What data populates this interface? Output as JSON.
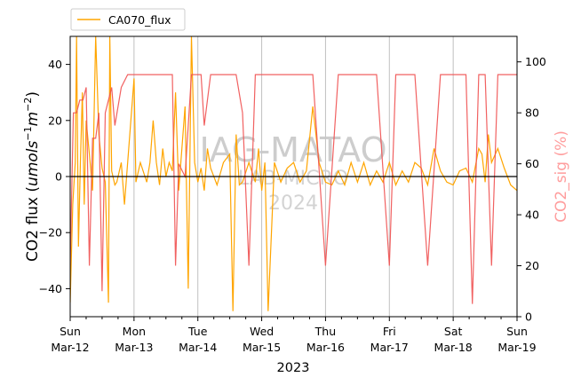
{
  "chart_data": {
    "type": "line",
    "legend": {
      "label": "CA070_flux",
      "placement": "top-left (above plot)"
    },
    "xlabel": "2023",
    "ylabel_left": "CO2 flux (umols^-1 m^-2)",
    "ylabel_right": "CO2_sig (%)",
    "ylim_left": [
      -50,
      50
    ],
    "ylim_right": [
      0,
      110
    ],
    "left_ticks": [
      -40,
      -20,
      0,
      20,
      40
    ],
    "right_ticks": [
      0,
      20,
      40,
      60,
      80,
      100
    ],
    "x_ticks": [
      {
        "day": "Sun",
        "date": "Mar-12"
      },
      {
        "day": "Mon",
        "date": "Mar-13"
      },
      {
        "day": "Tue",
        "date": "Mar-14"
      },
      {
        "day": "Wed",
        "date": "Mar-15"
      },
      {
        "day": "Thu",
        "date": "Mar-16"
      },
      {
        "day": "Fri",
        "date": "Mar-17"
      },
      {
        "day": "Sat",
        "date": "Mar-18"
      },
      {
        "day": "Sun",
        "date": "Mar-19"
      }
    ],
    "xlim_days": [
      0,
      7
    ],
    "grid": "vertical at day ticks",
    "zero_line": true,
    "watermark": {
      "line1": "IAG-MATAO",
      "line2": "LAB-MICRO",
      "line3": "2024"
    },
    "series": [
      {
        "name": "CA070_flux",
        "axis": "left",
        "color": "#ffa500",
        "x": [
          0,
          0.04,
          0.08,
          0.1,
          0.13,
          0.16,
          0.19,
          0.22,
          0.25,
          0.3,
          0.35,
          0.4,
          0.45,
          0.5,
          0.55,
          0.6,
          0.62,
          0.65,
          0.7,
          0.73,
          0.8,
          0.85,
          0.9,
          1,
          1.03,
          1.1,
          1.2,
          1.25,
          1.3,
          1.35,
          1.4,
          1.45,
          1.5,
          1.55,
          1.6,
          1.65,
          1.7,
          1.8,
          1.85,
          1.9,
          1.95,
          2,
          2.05,
          2.1,
          2.15,
          2.2,
          2.3,
          2.4,
          2.5,
          2.55,
          2.6,
          2.65,
          2.7,
          2.8,
          2.9,
          2.95,
          3,
          3.05,
          3.1,
          3.2,
          3.3,
          3.4,
          3.5,
          3.6,
          3.7,
          3.8,
          3.9,
          4,
          4.1,
          4.2,
          4.3,
          4.4,
          4.5,
          4.6,
          4.7,
          4.8,
          4.9,
          5,
          5.1,
          5.2,
          5.3,
          5.4,
          5.5,
          5.6,
          5.7,
          5.8,
          5.9,
          6,
          6.1,
          6.2,
          6.3,
          6.4,
          6.45,
          6.5,
          6.55,
          6.6,
          6.7,
          6.8,
          6.9,
          7
        ],
        "y": [
          -45,
          -10,
          5,
          50,
          -25,
          5,
          30,
          -10,
          20,
          8,
          -5,
          50,
          15,
          3,
          -2,
          -45,
          50,
          2,
          -3,
          -2,
          5,
          -10,
          5,
          35,
          -2,
          5,
          -2,
          5,
          20,
          5,
          -3,
          10,
          0,
          5,
          2,
          30,
          -5,
          25,
          -40,
          50,
          5,
          -2,
          3,
          -5,
          10,
          3,
          -3,
          5,
          8,
          -48,
          15,
          -3,
          -2,
          5,
          -2,
          10,
          -5,
          5,
          -48,
          5,
          -2,
          3,
          5,
          -2,
          2,
          25,
          5,
          -2,
          -3,
          2,
          -3,
          5,
          -2,
          5,
          -3,
          2,
          -2,
          5,
          -3,
          2,
          -2,
          5,
          3,
          -3,
          10,
          2,
          -2,
          -3,
          2,
          3,
          -2,
          10,
          8,
          -2,
          15,
          5,
          10,
          3,
          -3,
          -5
        ]
      },
      {
        "name": "CO2_sig",
        "axis": "right",
        "color": "#f05050",
        "x": [
          0,
          0.05,
          0.1,
          0.15,
          0.2,
          0.25,
          0.3,
          0.35,
          0.4,
          0.45,
          0.5,
          0.55,
          0.6,
          0.65,
          0.7,
          0.8,
          0.9,
          0.95,
          1,
          1.1,
          1.2,
          1.4,
          1.5,
          1.6,
          1.65,
          1.7,
          1.8,
          1.9,
          2,
          2.05,
          2.1,
          2.2,
          2.4,
          2.6,
          2.7,
          2.8,
          2.9,
          3,
          3.2,
          3.5,
          3.6,
          3.7,
          3.8,
          4,
          4.2,
          4.3,
          4.5,
          4.7,
          4.8,
          5,
          5.1,
          5.2,
          5.4,
          5.6,
          5.8,
          6,
          6.2,
          6.3,
          6.4,
          6.5,
          6.6,
          6.7,
          6.8,
          7
        ],
        "y": [
          20,
          80,
          80,
          85,
          85,
          90,
          20,
          70,
          70,
          80,
          10,
          80,
          85,
          90,
          75,
          90,
          95,
          95,
          95,
          95,
          95,
          95,
          95,
          95,
          20,
          60,
          55,
          95,
          95,
          95,
          75,
          95,
          95,
          95,
          80,
          20,
          95,
          95,
          95,
          95,
          95,
          95,
          95,
          20,
          95,
          95,
          95,
          95,
          95,
          20,
          95,
          95,
          95,
          20,
          95,
          95,
          95,
          5,
          95,
          95,
          20,
          95,
          95,
          95
        ]
      }
    ]
  }
}
